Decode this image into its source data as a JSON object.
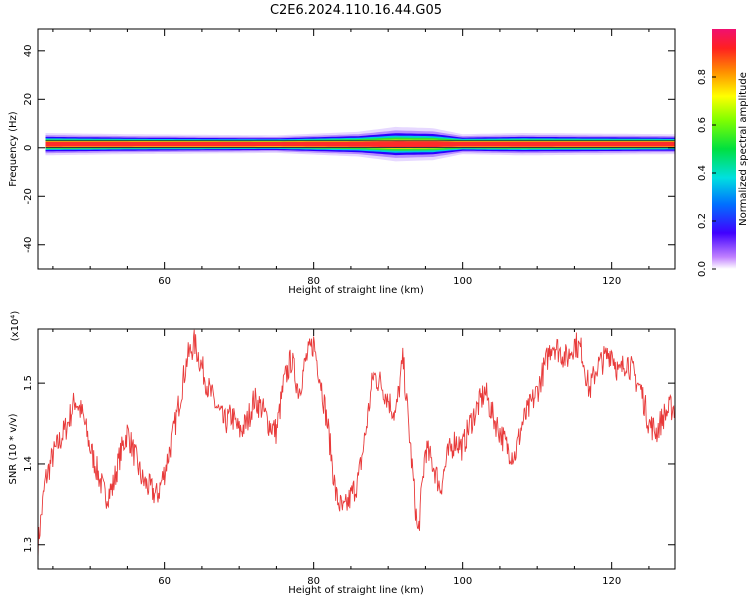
{
  "title": "C2E6.2024.110.16.44.G05",
  "colors": {
    "snr_line": "#e83a3a",
    "axis": "#000000",
    "background": "#ffffff"
  },
  "chart_data": [
    {
      "type": "heatmap",
      "xlabel": "Height of straight line (km)",
      "ylabel": "Frequency (Hz)",
      "xlim": [
        43,
        128.5
      ],
      "ylim": [
        -50,
        49
      ],
      "xticks": [
        60,
        80,
        100,
        120
      ],
      "xtick_labels": [
        "60",
        "80",
        "100",
        "120"
      ],
      "yticks": [
        -40,
        -20,
        0,
        20,
        40
      ],
      "ytick_labels": [
        "-40",
        "-20",
        "0",
        "20",
        "40"
      ],
      "colorbar": {
        "label": "Normalized spectral amplitude",
        "range": [
          0,
          1
        ],
        "ticks": [
          0.0,
          0.2,
          0.4,
          0.6,
          0.8
        ],
        "tick_labels": [
          "0.0",
          "0.2",
          "0.4",
          "0.6",
          "0.8"
        ],
        "colormap": "rainbow"
      },
      "band": {
        "center_hz": 1.5,
        "profile": [
          {
            "x": 44,
            "halfwidth_hz": 4
          },
          {
            "x": 55,
            "halfwidth_hz": 3.5
          },
          {
            "x": 75,
            "halfwidth_hz": 3
          },
          {
            "x": 86,
            "halfwidth_hz": 4.5
          },
          {
            "x": 91,
            "halfwidth_hz": 6.5
          },
          {
            "x": 96,
            "halfwidth_hz": 6
          },
          {
            "x": 100,
            "halfwidth_hz": 3.5
          },
          {
            "x": 108,
            "halfwidth_hz": 4
          },
          {
            "x": 128,
            "halfwidth_hz": 3.5
          }
        ]
      }
    },
    {
      "type": "line",
      "xlabel": "Height of straight line (km)",
      "ylabel": "SNR (10 * v/v)",
      "multiplier": "(x10⁴)",
      "xlim": [
        43,
        128.5
      ],
      "ylim": [
        1.27,
        1.567
      ],
      "xticks": [
        60,
        80,
        100,
        120
      ],
      "xtick_labels": [
        "60",
        "80",
        "100",
        "120"
      ],
      "yticks": [
        1.3,
        1.4,
        1.5
      ],
      "ytick_labels": [
        "1.3",
        "1.4",
        "1.5"
      ],
      "series": [
        {
          "x": [
            43,
            44,
            45,
            46,
            47,
            48,
            49,
            50,
            51,
            52,
            53,
            54,
            55,
            56,
            57,
            58,
            59,
            60,
            61,
            62,
            63,
            64,
            65,
            66,
            67,
            68,
            69,
            70,
            71,
            72,
            73,
            74,
            75,
            76,
            77,
            78,
            79,
            80,
            81,
            82,
            83,
            84,
            85,
            86,
            87,
            88,
            89,
            90,
            91,
            92,
            93,
            94,
            95,
            96,
            97,
            98,
            99,
            100,
            101,
            102,
            103,
            104,
            105,
            106,
            107,
            108,
            109,
            110,
            111,
            112,
            113,
            114,
            115,
            116,
            117,
            118,
            119,
            120,
            121,
            122,
            123,
            124,
            125,
            126,
            127,
            128
          ],
          "y": [
            1.3,
            1.38,
            1.41,
            1.43,
            1.45,
            1.48,
            1.46,
            1.42,
            1.39,
            1.36,
            1.37,
            1.41,
            1.44,
            1.41,
            1.38,
            1.37,
            1.36,
            1.39,
            1.43,
            1.48,
            1.53,
            1.55,
            1.52,
            1.49,
            1.47,
            1.45,
            1.46,
            1.44,
            1.45,
            1.48,
            1.47,
            1.45,
            1.44,
            1.5,
            1.53,
            1.49,
            1.53,
            1.55,
            1.5,
            1.44,
            1.36,
            1.34,
            1.36,
            1.38,
            1.44,
            1.51,
            1.5,
            1.48,
            1.46,
            1.53,
            1.42,
            1.31,
            1.42,
            1.4,
            1.37,
            1.41,
            1.43,
            1.42,
            1.45,
            1.47,
            1.49,
            1.46,
            1.44,
            1.42,
            1.41,
            1.45,
            1.47,
            1.49,
            1.52,
            1.55,
            1.54,
            1.53,
            1.55,
            1.54,
            1.49,
            1.52,
            1.53,
            1.54,
            1.51,
            1.53,
            1.51,
            1.49,
            1.45,
            1.44,
            1.46,
            1.47
          ]
        }
      ]
    }
  ]
}
